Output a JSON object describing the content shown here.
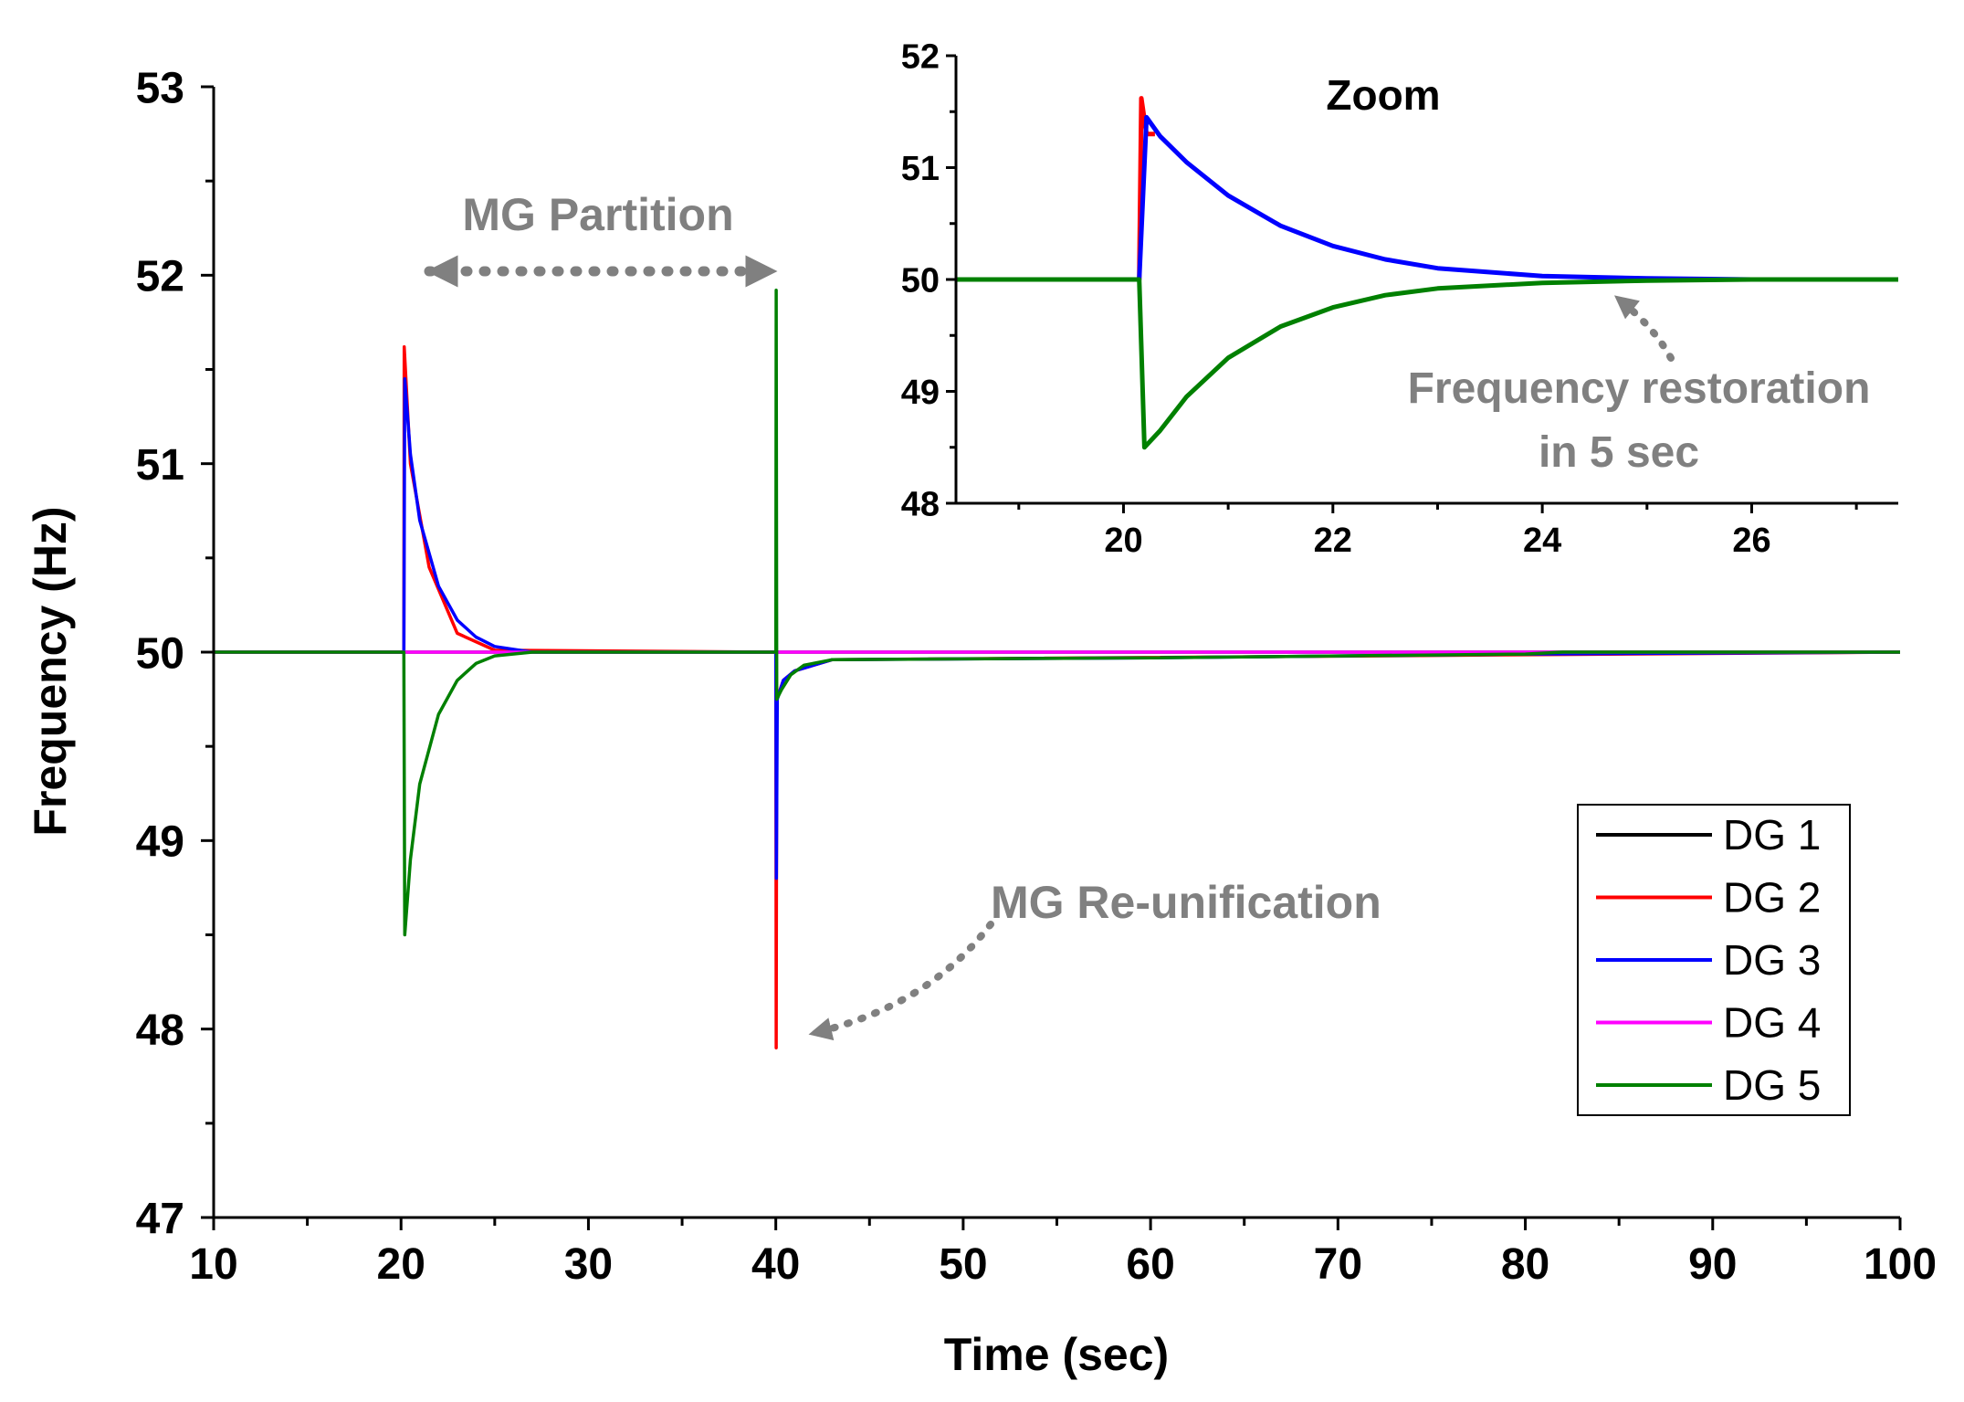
{
  "chart_data": [
    {
      "type": "line",
      "xlabel": "Time (sec)",
      "ylabel": "Frequency (Hz)",
      "xlim": [
        10,
        100
      ],
      "ylim": [
        47,
        53
      ],
      "xticks": [
        10,
        20,
        30,
        40,
        50,
        60,
        70,
        80,
        90,
        100
      ],
      "yticks": [
        47,
        48,
        49,
        50,
        51,
        52,
        53
      ],
      "grid": false,
      "legend_position": "bottom-right",
      "series": [
        {
          "name": "DG 1",
          "color": "#000000",
          "x": [
            10,
            20.15,
            20.16,
            40,
            40.02,
            100
          ],
          "y": [
            50,
            50,
            50,
            50,
            50,
            50
          ]
        },
        {
          "name": "DG 2",
          "color": "#ff0000",
          "x": [
            10,
            20.15,
            20.17,
            20.5,
            21.5,
            23,
            25,
            40,
            40.02,
            40.05,
            40.4,
            41,
            43,
            100
          ],
          "y": [
            50,
            50,
            51.62,
            51.0,
            50.45,
            50.1,
            50.01,
            50,
            47.9,
            49.75,
            49.85,
            49.9,
            49.96,
            50
          ]
        },
        {
          "name": "DG 3",
          "color": "#0000ff",
          "x": [
            10,
            20.15,
            20.2,
            20.5,
            21,
            22,
            23,
            24,
            25,
            27,
            40,
            40.03,
            40.08,
            40.4,
            41,
            43,
            60,
            80,
            100
          ],
          "y": [
            50,
            50,
            51.45,
            51.05,
            50.7,
            50.35,
            50.17,
            50.08,
            50.03,
            50.0,
            50,
            48.8,
            49.75,
            49.85,
            49.9,
            49.96,
            49.97,
            49.99,
            50
          ]
        },
        {
          "name": "DG 4",
          "color": "#ff00ff",
          "x": [
            10,
            20.15,
            20.16,
            40,
            40.02,
            100
          ],
          "y": [
            50,
            50,
            50,
            50,
            50,
            50
          ]
        },
        {
          "name": "DG 5",
          "color": "#008000",
          "x": [
            10,
            20.15,
            20.2,
            20.5,
            21,
            22,
            23,
            24,
            25,
            27,
            40,
            40.02,
            40.05,
            40.3,
            40.8,
            41.5,
            43,
            60,
            80,
            82,
            100
          ],
          "y": [
            50,
            50,
            48.5,
            48.9,
            49.3,
            49.67,
            49.85,
            49.94,
            49.98,
            50.0,
            50,
            51.92,
            49.75,
            49.8,
            49.88,
            49.93,
            49.96,
            49.97,
            49.99,
            50.0,
            50
          ]
        }
      ],
      "annotations": [
        {
          "text": "MG Partition",
          "arrow_from": [
            20,
            52
          ],
          "arrow_to": [
            40,
            52
          ],
          "double_headed": true
        },
        {
          "text": "MG Re-unification",
          "arrow_to": [
            40.3,
            47.98
          ]
        }
      ]
    },
    {
      "type": "line",
      "title": "Zoom",
      "xlim": [
        18.4,
        27.4
      ],
      "ylim": [
        48,
        52
      ],
      "xticks": [
        20,
        22,
        24,
        26
      ],
      "yticks": [
        48,
        49,
        50,
        51,
        52
      ],
      "grid": false,
      "series": [
        {
          "name": "DG 2",
          "color": "#ff0000",
          "x": [
            18.4,
            20.15,
            20.17,
            20.22,
            20.3
          ],
          "y": [
            50,
            50,
            51.62,
            51.3,
            51.3
          ]
        },
        {
          "name": "DG 3",
          "color": "#0000ff",
          "x": [
            18.4,
            20.15,
            20.22,
            20.35,
            20.6,
            21,
            21.5,
            22,
            22.5,
            23,
            24,
            25,
            26,
            27.4
          ],
          "y": [
            50,
            50,
            51.45,
            51.28,
            51.05,
            50.75,
            50.48,
            50.3,
            50.18,
            50.1,
            50.03,
            50.01,
            50.0,
            50.0
          ]
        },
        {
          "name": "DG 5",
          "color": "#008000",
          "x": [
            18.4,
            20.15,
            20.2,
            20.35,
            20.6,
            21,
            21.5,
            22,
            22.5,
            23,
            24,
            25,
            26,
            27.4
          ],
          "y": [
            50,
            50,
            48.5,
            48.65,
            48.95,
            49.3,
            49.58,
            49.75,
            49.86,
            49.92,
            49.97,
            49.99,
            50.0,
            50.0
          ]
        }
      ],
      "annotations": [
        {
          "text": "Frequency restoration in 5 sec",
          "lines": [
            "Frequency restoration",
            "in 5 sec"
          ],
          "arrow_to": [
            24.8,
            49.9
          ]
        }
      ]
    }
  ]
}
